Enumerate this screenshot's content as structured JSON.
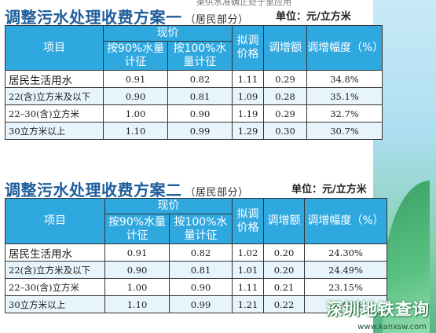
{
  "top_fragment": "渠供水准确正处于里应用",
  "plan1": {
    "title": "调整污水处理收费方案一",
    "subtitle": "（居民部分）",
    "unit": "单位：元/立方米",
    "headers": {
      "item": "项目",
      "current": "现价",
      "by90": "按90%水量计征",
      "by100": "按100%水量计征",
      "proposed": "拟调价格",
      "increase": "调增额",
      "rate": "调增幅度（%）"
    },
    "rows": [
      {
        "label": "居民生活用水",
        "by90": "0.91",
        "by100": "0.82",
        "proposed": "1.11",
        "increase": "0.29",
        "rate": "34.8%"
      },
      {
        "label": "22(含)立方米及以下",
        "by90": "0.90",
        "by100": "0.81",
        "proposed": "1.09",
        "increase": "0.28",
        "rate": "35.1%"
      },
      {
        "label": "22–30(含)立方米",
        "by90": "1.00",
        "by100": "0.90",
        "proposed": "1.19",
        "increase": "0.29",
        "rate": "32.7%"
      },
      {
        "label": "30立方米以上",
        "by90": "1.10",
        "by100": "0.99",
        "proposed": "1.29",
        "increase": "0.30",
        "rate": "30.7%"
      }
    ]
  },
  "plan2": {
    "title": "调整污水处理收费方案二",
    "subtitle": "（居民部分）",
    "unit": "单位：元/立方米",
    "headers": {
      "item": "项目",
      "current": "现价",
      "by90": "按90%水量计征",
      "by100": "按100%水量计征",
      "proposed": "拟调价格",
      "increase": "调增额",
      "rate": "调增幅度（%）"
    },
    "rows": [
      {
        "label": "居民生活用水",
        "by90": "0.91",
        "by100": "0.82",
        "proposed": "1.02",
        "increase": "0.20",
        "rate": "24.30%"
      },
      {
        "label": "22(含)立方米及以下",
        "by90": "0.90",
        "by100": "0.81",
        "proposed": "1.01",
        "increase": "0.20",
        "rate": "24.49%"
      },
      {
        "label": "22–30(含)立方米",
        "by90": "1.00",
        "by100": "0.90",
        "proposed": "1.11",
        "increase": "0.21",
        "rate": "23.15%"
      },
      {
        "label": "30立方米以上",
        "by90": "1.10",
        "by100": "0.99",
        "proposed": "1.21",
        "increase": "0.22",
        "rate": "22.06%"
      }
    ]
  },
  "watermark": {
    "text": "深圳地铁查询",
    "url": "www.kanxsw.com"
  },
  "colors": {
    "title": "#1e5d9c",
    "header_bg": "#2fa8e0",
    "row_alt": "#e8f4fb"
  }
}
